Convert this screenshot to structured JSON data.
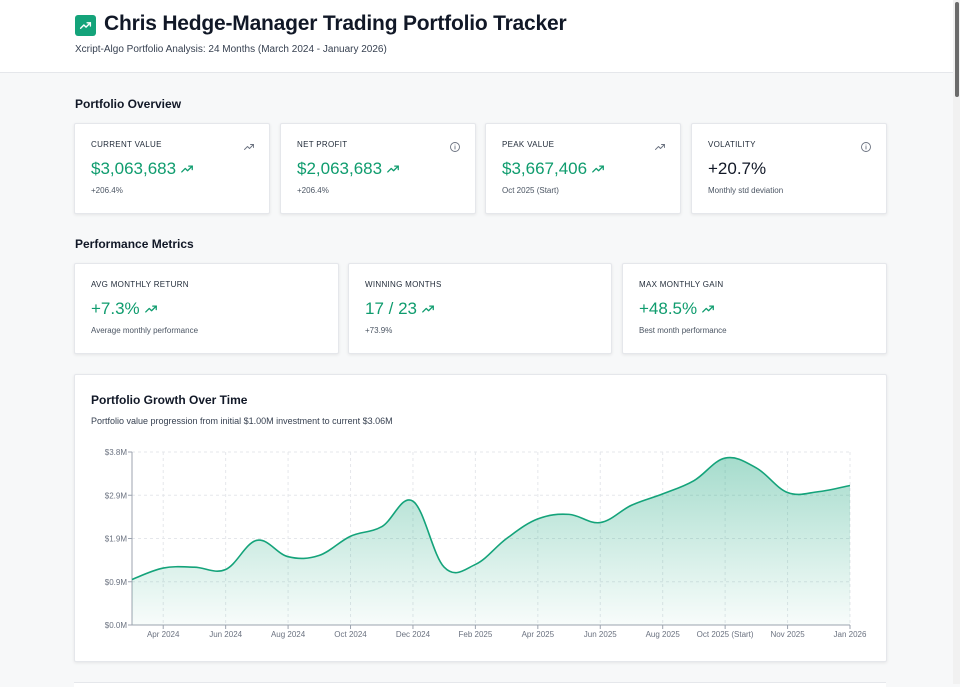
{
  "header": {
    "title": "Chris Hedge-Manager Trading Portfolio Tracker",
    "subtitle": "Xcript-Algo Portfolio Analysis: 24 Months (March 2024 - January 2026)",
    "logo_icon": "trending-up-icon"
  },
  "colors": {
    "accent": "#14a37a",
    "positive": "#0f9c6e",
    "text": "#111827",
    "muted": "#4b5563"
  },
  "overview": {
    "title": "Portfolio Overview",
    "cards": [
      {
        "label": "CURRENT VALUE",
        "value": "$3,063,683",
        "sub": "+206.4%",
        "corner_icon": "trending-up-icon",
        "value_icon": "trending-up-icon"
      },
      {
        "label": "NET PROFIT",
        "value": "$2,063,683",
        "sub": "+206.4%",
        "corner_icon": "info-icon",
        "value_icon": "trending-up-icon"
      },
      {
        "label": "PEAK VALUE",
        "value": "$3,667,406",
        "sub": "Oct 2025 (Start)",
        "corner_icon": "trending-up-icon",
        "value_icon": "trending-up-icon"
      },
      {
        "label": "VOLATILITY",
        "value": "+20.7%",
        "sub": "Monthly std deviation",
        "corner_icon": "info-icon"
      }
    ]
  },
  "performance": {
    "title": "Performance Metrics",
    "cards": [
      {
        "label": "AVG MONTHLY RETURN",
        "value": "+7.3%",
        "sub": "Average monthly performance",
        "value_icon": "trending-up-icon"
      },
      {
        "label": "WINNING MONTHS",
        "value": "17 / 23",
        "sub": "+73.9%",
        "value_icon": "trending-up-icon"
      },
      {
        "label": "MAX MONTHLY GAIN",
        "value": "+48.5%",
        "sub": "Best month performance",
        "value_icon": "trending-up-icon"
      }
    ]
  },
  "growth_chart": {
    "title": "Portfolio Growth Over Time",
    "description": "Portfolio value progression from initial $1.00M investment to current $3.06M"
  },
  "chart_data": {
    "type": "area",
    "title": "Portfolio Growth Over Time",
    "xlabel": "",
    "ylabel": "",
    "x": [
      "Mar 2024",
      "Apr 2024",
      "May 2024",
      "Jun 2024",
      "Jul 2024",
      "Aug 2024",
      "Sep 2024",
      "Oct 2024",
      "Nov 2024",
      "Dec 2024",
      "Jan 2025",
      "Feb 2025",
      "Mar 2025",
      "Apr 2025",
      "May 2025",
      "Jun 2025",
      "Jul 2025",
      "Aug 2025",
      "Sep 2025",
      "Oct 2025 (Start)",
      "Oct 2025",
      "Nov 2025",
      "Dec 2025",
      "Jan 2026"
    ],
    "x_tick_labels": [
      "Apr 2024",
      "Jun 2024",
      "Aug 2024",
      "Oct 2024",
      "Dec 2024",
      "Feb 2025",
      "Apr 2025",
      "Jun 2025",
      "Aug 2025",
      "Oct 2025 (Start)",
      "Nov 2025",
      "Jan 2026"
    ],
    "series": [
      {
        "values": [
          1.0,
          1.25,
          1.27,
          1.22,
          1.86,
          1.5,
          1.53,
          1.95,
          2.16,
          2.72,
          1.27,
          1.33,
          1.9,
          2.33,
          2.43,
          2.25,
          2.63,
          2.88,
          3.17,
          3.667,
          3.45,
          2.91,
          2.93,
          3.064
        ],
        "color": "#14a37a"
      }
    ],
    "y_ticks": [
      "$0.0M",
      "$0.9M",
      "$1.9M",
      "$2.9M",
      "$3.8M"
    ],
    "ylim": [
      0,
      3.8
    ],
    "grid": true
  }
}
